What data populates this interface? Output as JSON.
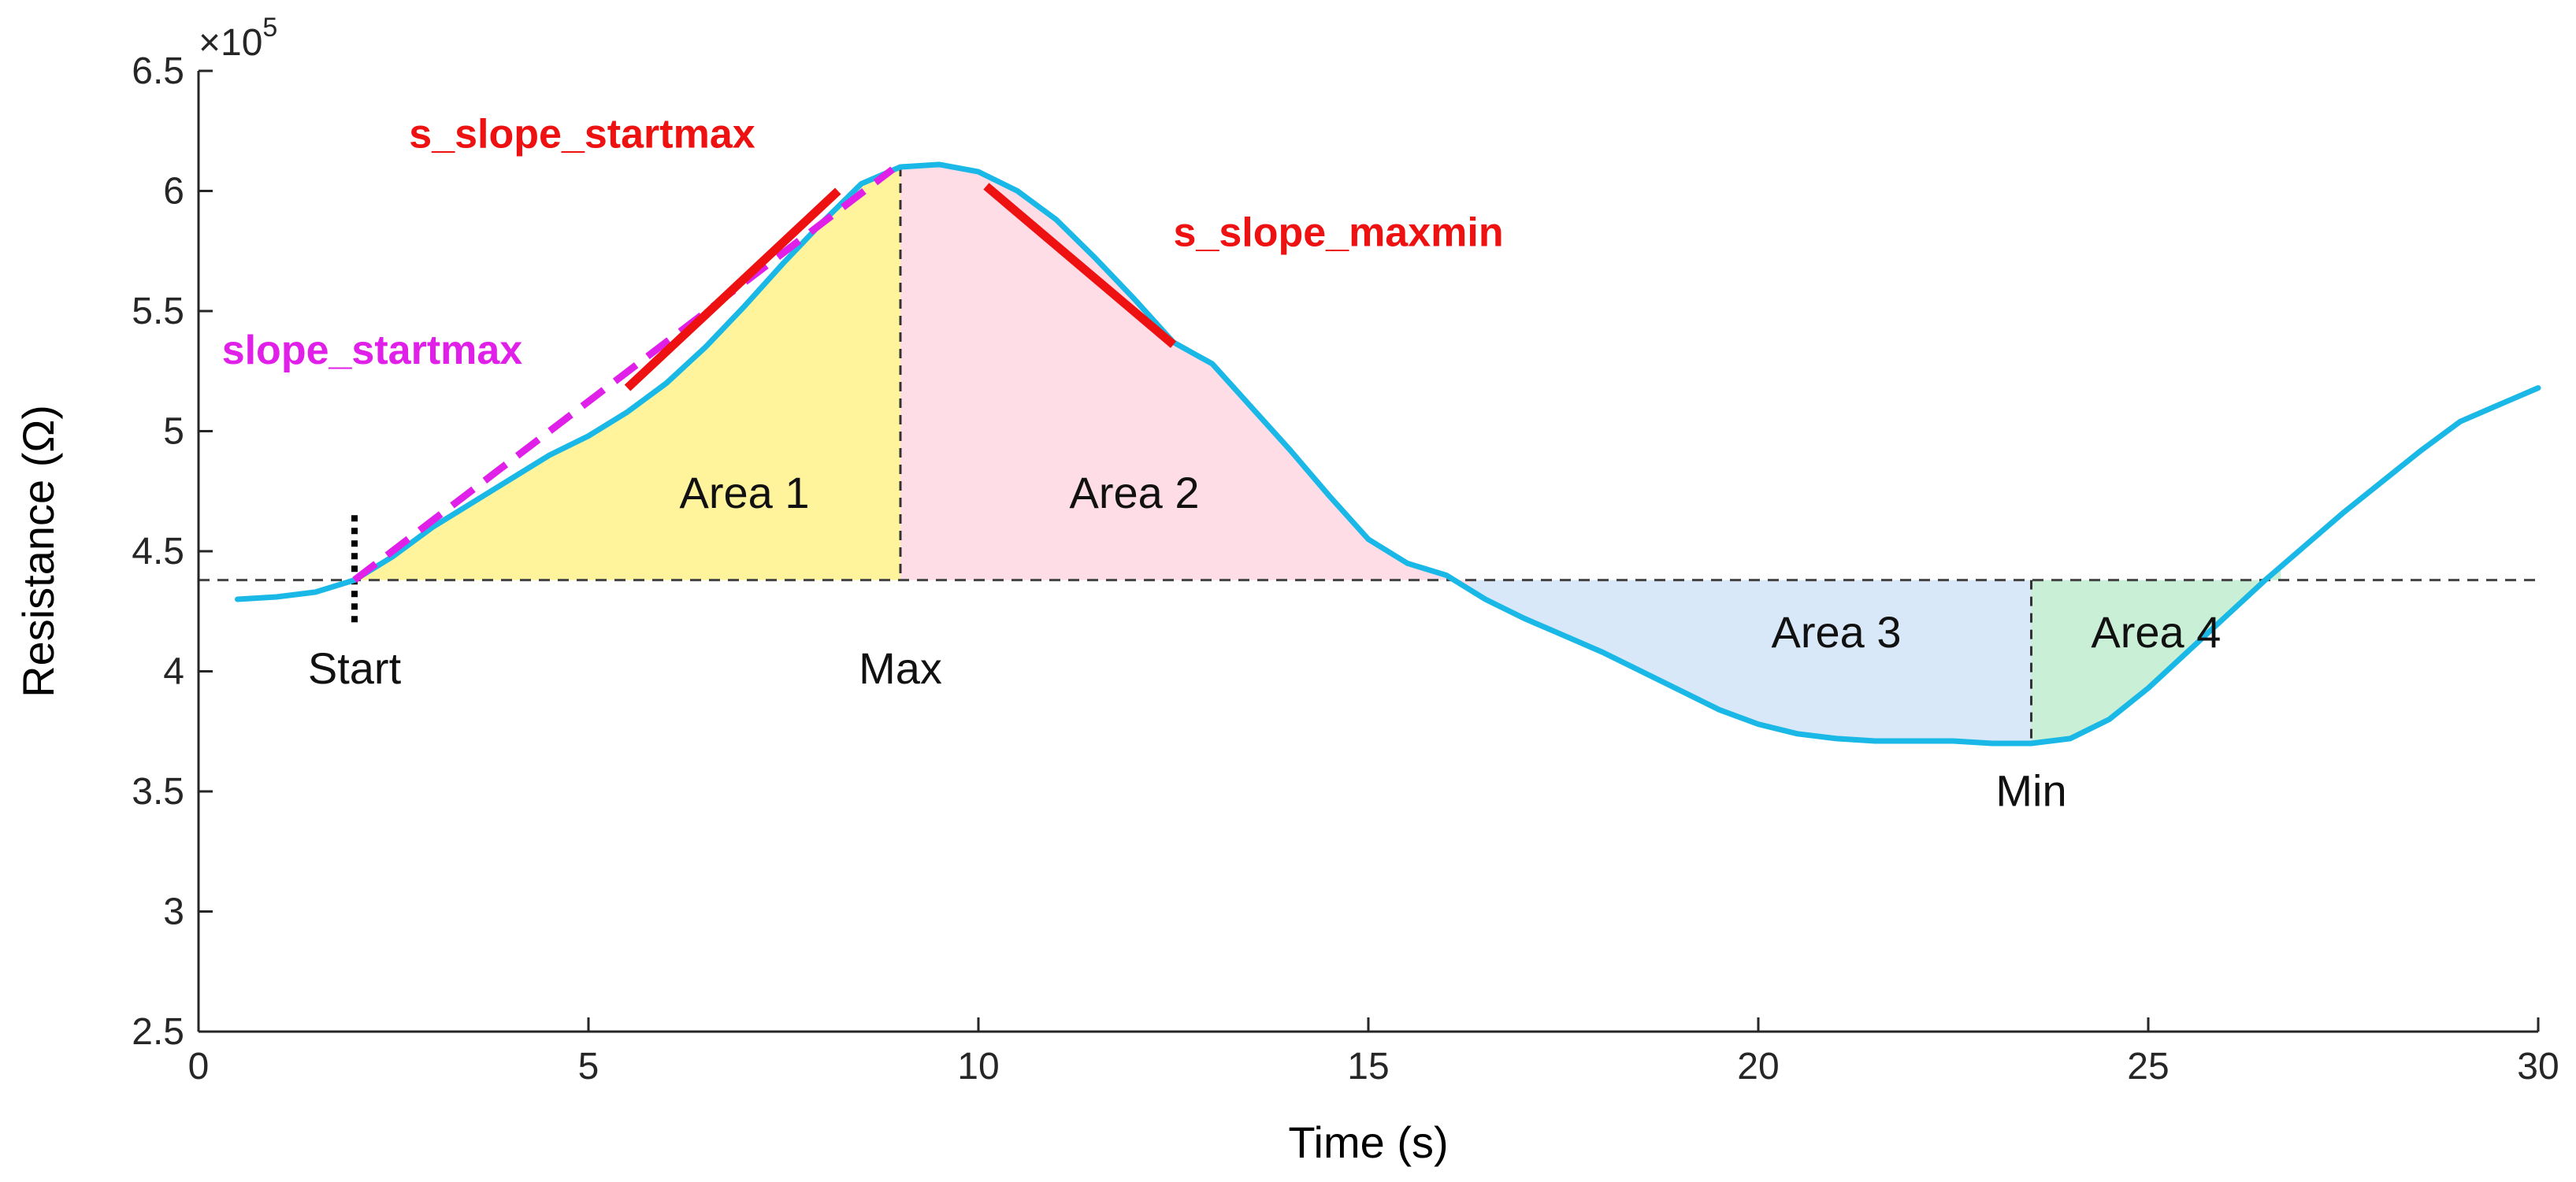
{
  "chart_data": {
    "type": "line",
    "title": "",
    "xlabel": "Time (s)",
    "ylabel": "Resistance (Ω)",
    "y_exponent_label": "×10",
    "y_exponent_power": "5",
    "xlim": [
      0,
      30
    ],
    "ylim": [
      2.5,
      6.5
    ],
    "x_ticks": [
      0,
      5,
      10,
      15,
      20,
      25,
      30
    ],
    "x_tick_labels": [
      "0",
      "5",
      "10",
      "15",
      "20",
      "25",
      "30"
    ],
    "y_ticks": [
      2.5,
      3,
      3.5,
      4,
      4.5,
      5,
      5.5,
      6,
      6.5
    ],
    "y_tick_labels": [
      "2.5",
      "3",
      "3.5",
      "4",
      "4.5",
      "5",
      "5.5",
      "6",
      "6.5"
    ],
    "grid": false,
    "baseline_y": 4.38,
    "series": [
      {
        "name": "Resistance",
        "color": "#1ab8e6",
        "x": [
          0.5,
          1.0,
          1.5,
          2.0,
          2.5,
          3.0,
          3.5,
          4.0,
          4.5,
          5.0,
          5.5,
          6.0,
          6.5,
          7.0,
          7.5,
          8.0,
          8.5,
          9.0,
          9.5,
          10.0,
          10.5,
          11.0,
          11.5,
          12.0,
          12.5,
          13.0,
          13.5,
          14.0,
          14.5,
          15.0,
          15.5,
          16.0,
          16.5,
          17.0,
          17.5,
          18.0,
          18.5,
          19.0,
          19.5,
          20.0,
          20.5,
          21.0,
          21.5,
          22.0,
          22.5,
          23.0,
          23.5,
          24.0,
          24.5,
          25.0,
          25.5,
          26.0,
          26.5,
          27.0,
          27.5,
          28.0,
          28.5,
          29.0,
          29.5,
          30.0
        ],
        "y": [
          4.3,
          4.31,
          4.33,
          4.38,
          4.48,
          4.6,
          4.7,
          4.8,
          4.9,
          4.98,
          5.08,
          5.2,
          5.35,
          5.52,
          5.7,
          5.87,
          6.03,
          6.1,
          6.11,
          6.08,
          6.0,
          5.88,
          5.72,
          5.55,
          5.37,
          5.28,
          5.1,
          4.92,
          4.73,
          4.55,
          4.45,
          4.4,
          4.3,
          4.22,
          4.15,
          4.08,
          4.0,
          3.92,
          3.84,
          3.78,
          3.74,
          3.72,
          3.71,
          3.71,
          3.71,
          3.7,
          3.7,
          3.72,
          3.8,
          3.93,
          4.08,
          4.23,
          4.38,
          4.52,
          4.66,
          4.79,
          4.92,
          5.04,
          5.11,
          5.18
        ]
      }
    ],
    "markers": {
      "start": {
        "x": 2.0,
        "label": "Start"
      },
      "max": {
        "x": 9.0,
        "label": "Max"
      },
      "min": {
        "x": 23.5,
        "label": "Min"
      }
    },
    "areas": [
      {
        "label": "Area 1",
        "x_from": 2.0,
        "x_to": 9.0,
        "side": "above",
        "color": "#fff49c",
        "label_x": 7.0,
        "label_y": 4.68
      },
      {
        "label": "Area 2",
        "x_from": 9.0,
        "x_to": 16.3,
        "side": "above",
        "color": "#ffdde6",
        "label_x": 12.0,
        "label_y": 4.68
      },
      {
        "label": "Area 3",
        "x_from": 16.3,
        "x_to": 23.5,
        "side": "below",
        "color": "#d8e8f8",
        "label_x": 21.0,
        "label_y": 4.1
      },
      {
        "label": "Area 4",
        "x_from": 23.5,
        "x_to": 26.7,
        "side": "below",
        "color": "#c9f0d7",
        "label_x": 25.1,
        "label_y": 4.1
      }
    ],
    "slope_lines": [
      {
        "label": "slope_startmax",
        "color": "#e020e8",
        "style": "dashed",
        "x": [
          2.0,
          8.9
        ],
        "y": [
          4.38,
          6.09
        ],
        "label_x": 0.3,
        "label_y": 5.28
      },
      {
        "label": "s_slope_startmax",
        "color": "#ee1111",
        "style": "solid",
        "x": [
          5.5,
          8.2
        ],
        "y": [
          5.18,
          6.0
        ],
        "label_x": 2.7,
        "label_y": 6.18
      },
      {
        "label": "s_slope_maxmin",
        "color": "#ee1111",
        "style": "solid",
        "x": [
          10.1,
          12.5
        ],
        "y": [
          6.02,
          5.36
        ],
        "label_x": 12.5,
        "label_y": 5.77
      }
    ]
  }
}
